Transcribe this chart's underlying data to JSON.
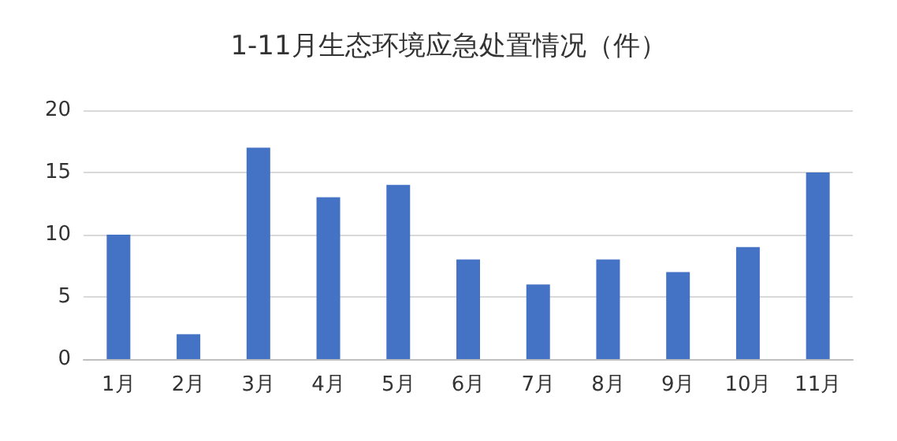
{
  "chart_data": {
    "type": "bar",
    "title": "1-11月生态环境应急处置情况（件）",
    "categories": [
      "1月",
      "2月",
      "3月",
      "4月",
      "5月",
      "6月",
      "7月",
      "8月",
      "9月",
      "10月",
      "11月"
    ],
    "values": [
      10,
      2,
      17,
      13,
      14,
      8,
      6,
      8,
      7,
      9,
      15
    ],
    "color": "#4472c4",
    "ylim": [
      0,
      20
    ],
    "yticks": [
      0,
      5,
      10,
      15,
      20
    ],
    "grid": "y"
  }
}
